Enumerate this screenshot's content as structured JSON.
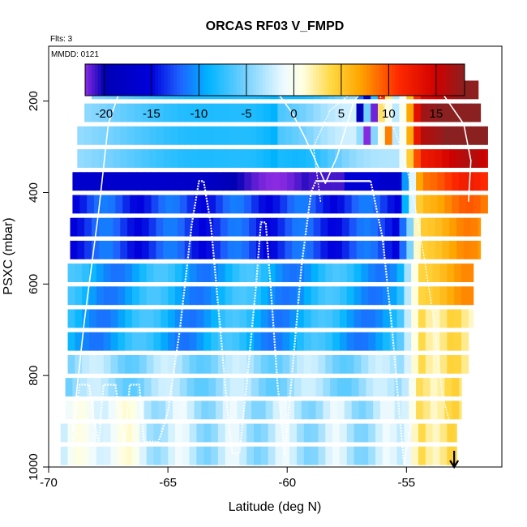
{
  "chart_data": {
    "type": "heatmap",
    "title": "ORCAS RF03 V_FMPD",
    "flights_note": "Flts: 3",
    "date_note": "MMDD: 0121",
    "xlabel": "Latitude (deg N)",
    "ylabel": "PSXC (mbar)",
    "xlim": [
      -70,
      -51
    ],
    "ylim": [
      1000,
      80
    ],
    "x_ticks": [
      -70,
      -65,
      -60,
      -55
    ],
    "x_tick_labels": [
      "-70",
      "-65",
      "-60",
      "-55"
    ],
    "y_ticks": [
      200,
      400,
      600,
      800,
      1000
    ],
    "y_tick_labels": [
      "200",
      "400",
      "600",
      "800",
      "1000"
    ],
    "colorbar": {
      "range": [
        -22,
        18
      ],
      "ticks": [
        -20,
        -15,
        -10,
        -5,
        0,
        5,
        10,
        15
      ],
      "tick_labels": [
        "-20",
        "-15",
        "-10",
        "-5",
        "0",
        "5",
        "10",
        "15"
      ],
      "boundaries": [
        -22,
        -20,
        -15,
        -10,
        -5,
        0,
        5,
        10,
        15,
        18
      ],
      "stops": [
        {
          "v": -22,
          "c": "#8a2be2"
        },
        {
          "v": -20,
          "c": "#0000b4"
        },
        {
          "v": -15,
          "c": "#0000dc"
        },
        {
          "v": -12,
          "c": "#1e64ff"
        },
        {
          "v": -9,
          "c": "#00b4ff"
        },
        {
          "v": -5,
          "c": "#78d2ff"
        },
        {
          "v": -1,
          "c": "#f0fbff"
        },
        {
          "v": 1,
          "c": "#ffffe0"
        },
        {
          "v": 4,
          "c": "#ffd740"
        },
        {
          "v": 7,
          "c": "#ffa500"
        },
        {
          "v": 11,
          "c": "#ff2a00"
        },
        {
          "v": 15,
          "c": "#d00000"
        },
        {
          "v": 18,
          "c": "#8b2020"
        }
      ]
    },
    "field": {
      "lat_start": -69.0,
      "lat_step": 0.3,
      "pressure_levels": [
        175,
        225,
        275,
        325,
        375,
        425,
        475,
        525,
        575,
        625,
        675,
        725,
        775,
        825,
        875,
        925,
        975
      ]
    },
    "flight_track": [
      [
        -69.0,
        960
      ],
      [
        -68.9,
        900
      ],
      [
        -68.7,
        820
      ],
      [
        -68.3,
        820
      ],
      [
        -68.1,
        900
      ],
      [
        -67.9,
        945
      ],
      [
        -67.7,
        820
      ],
      [
        -67.2,
        820
      ],
      [
        -67.0,
        900
      ],
      [
        -66.8,
        945
      ],
      [
        -66.6,
        820
      ],
      [
        -66.2,
        820
      ],
      [
        -66.0,
        945
      ],
      [
        -65.4,
        945
      ],
      [
        -65.3,
        930
      ],
      [
        -65.0,
        880
      ],
      [
        -64.5,
        700
      ],
      [
        -64.0,
        470
      ],
      [
        -63.7,
        375
      ],
      [
        -63.5,
        375
      ],
      [
        -63.2,
        470
      ],
      [
        -62.8,
        700
      ],
      [
        -62.5,
        880
      ],
      [
        -62.3,
        970
      ],
      [
        -62.0,
        970
      ],
      [
        -61.7,
        820
      ],
      [
        -61.3,
        600
      ],
      [
        -61.1,
        465
      ],
      [
        -60.9,
        465
      ],
      [
        -60.7,
        600
      ],
      [
        -60.4,
        820
      ],
      [
        -60.1,
        975
      ],
      [
        -59.8,
        800
      ],
      [
        -59.4,
        560
      ],
      [
        -59.0,
        400
      ],
      [
        -58.8,
        375
      ],
      [
        -56.5,
        375
      ],
      [
        -56.0,
        500
      ],
      [
        -55.6,
        700
      ],
      [
        -55.3,
        880
      ],
      [
        -55.1,
        995
      ],
      [
        -54.8,
        905
      ]
    ],
    "envelope": [
      [
        -69.0,
        920
      ],
      [
        -68.5,
        680
      ],
      [
        -67.9,
        440
      ],
      [
        -67.5,
        250
      ],
      [
        -67.0,
        175
      ],
      [
        -62.5,
        175
      ],
      [
        -60.5,
        175
      ],
      [
        -59.8,
        225
      ],
      [
        -59.3,
        275
      ],
      [
        -58.9,
        320
      ],
      [
        -58.4,
        380
      ],
      [
        -57.9,
        320
      ],
      [
        -57.2,
        200
      ],
      [
        -56.8,
        175
      ],
      [
        -53.6,
        175
      ],
      [
        -52.6,
        250
      ],
      [
        -52.3,
        330
      ],
      [
        -52.4,
        420
      ]
    ],
    "envelope_inner": [
      [
        -58.6,
        420
      ],
      [
        -58.9,
        300
      ],
      [
        -58.2,
        220
      ],
      [
        -57.2,
        178
      ],
      [
        -56.2,
        178
      ],
      [
        -55.6,
        250
      ],
      [
        -55.1,
        320
      ],
      [
        -54.6,
        440
      ],
      [
        -54.2,
        560
      ],
      [
        -53.8,
        700
      ],
      [
        -53.5,
        840
      ],
      [
        -53.2,
        900
      ]
    ],
    "arrow_lat": -53.0
  }
}
